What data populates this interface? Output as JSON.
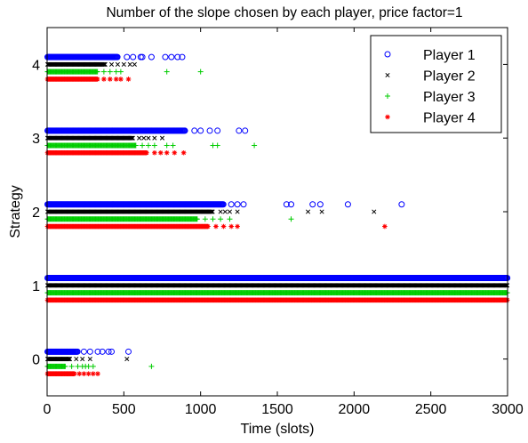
{
  "chart_data": {
    "type": "scatter",
    "title": "Number of the slope chosen by each player, price factor=1",
    "xlabel": "Time (slots)",
    "ylabel": "Strategy",
    "xlim": [
      0,
      3000
    ],
    "ylim": [
      -0.5,
      4.5
    ],
    "xticks": [
      0,
      500,
      1000,
      1500,
      2000,
      2500,
      3000
    ],
    "yticks": [
      0,
      1,
      2,
      3,
      4
    ],
    "grid": false,
    "legend_position": "top-right",
    "series": [
      {
        "name": "Player 1",
        "marker": "circle",
        "color": "#0000ff",
        "offset": 0.1,
        "bands": [
          {
            "strategy": 0,
            "dense_to": 200,
            "sparse_x": [
              240,
              280,
              330,
              360,
              400,
              420,
              530
            ]
          },
          {
            "strategy": 1,
            "dense_to": 3000,
            "sparse_x": []
          },
          {
            "strategy": 2,
            "dense_to": 1150,
            "sparse_x": [
              1200,
              1240,
              1280,
              1560,
              1590,
              1730,
              1780,
              1960,
              2310
            ]
          },
          {
            "strategy": 3,
            "dense_to": 900,
            "sparse_x": [
              960,
              1000,
              1060,
              1110,
              1250,
              1290
            ]
          },
          {
            "strategy": 4,
            "dense_to": 460,
            "sparse_x": [
              520,
              560,
              610,
              620,
              680,
              770,
              810,
              850,
              880
            ]
          }
        ]
      },
      {
        "name": "Player 2",
        "marker": "x",
        "color": "#000000",
        "offset": 0.0,
        "bands": [
          {
            "strategy": 0,
            "dense_to": 150,
            "sparse_x": [
              190,
              230,
              280,
              520
            ]
          },
          {
            "strategy": 1,
            "dense_to": 3000,
            "sparse_x": []
          },
          {
            "strategy": 2,
            "dense_to": 1080,
            "sparse_x": [
              1130,
              1160,
              1190,
              1240,
              1700,
              1790,
              2130
            ]
          },
          {
            "strategy": 3,
            "dense_to": 560,
            "sparse_x": [
              600,
              630,
              660,
              700,
              750
            ]
          },
          {
            "strategy": 4,
            "dense_to": 380,
            "sparse_x": [
              420,
              460,
              500,
              540,
              570
            ]
          }
        ]
      },
      {
        "name": "Player 3",
        "marker": "plus",
        "color": "#00cc00",
        "offset": -0.1,
        "bands": [
          {
            "strategy": 0,
            "dense_to": 120,
            "sparse_x": [
              160,
              200,
              230,
              250,
              270,
              300,
              680
            ]
          },
          {
            "strategy": 1,
            "dense_to": 3000,
            "sparse_x": []
          },
          {
            "strategy": 2,
            "dense_to": 980,
            "sparse_x": [
              1030,
              1080,
              1130,
              1190,
              1590
            ]
          },
          {
            "strategy": 3,
            "dense_to": 580,
            "sparse_x": [
              620,
              660,
              700,
              780,
              820,
              1080,
              1110,
              1350
            ]
          },
          {
            "strategy": 4,
            "dense_to": 330,
            "sparse_x": [
              370,
              410,
              450,
              480,
              780,
              1000
            ]
          }
        ]
      },
      {
        "name": "Player 4",
        "marker": "star",
        "color": "#ff0000",
        "offset": -0.2,
        "bands": [
          {
            "strategy": 0,
            "dense_to": 180,
            "sparse_x": [
              210,
              240,
              270,
              300,
              330
            ]
          },
          {
            "strategy": 1,
            "dense_to": 3000,
            "sparse_x": []
          },
          {
            "strategy": 2,
            "dense_to": 1050,
            "sparse_x": [
              1100,
              1150,
              1200,
              1240,
              2200
            ]
          },
          {
            "strategy": 3,
            "dense_to": 650,
            "sparse_x": [
              700,
              740,
              780,
              830,
              890
            ]
          },
          {
            "strategy": 4,
            "dense_to": 330,
            "sparse_x": [
              370,
              410,
              450,
              480,
              530
            ]
          }
        ]
      }
    ]
  }
}
